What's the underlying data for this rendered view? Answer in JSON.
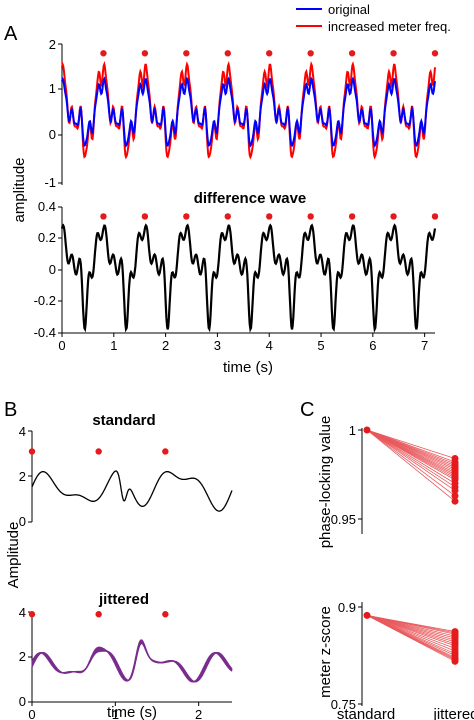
{
  "colors": {
    "original": "#0000ff",
    "increased": "#ff0000",
    "diff": "#000000",
    "marker": "#e41a1c",
    "jittered": "#7b2d8e",
    "conn": "#e8595c"
  },
  "panel_labels": {
    "a": "A",
    "b": "B",
    "c": "C"
  },
  "chart_data": [
    {
      "id": "A-top",
      "type": "line",
      "ylim": [
        -1,
        2
      ],
      "xlim": [
        0,
        7.2
      ],
      "yticks": [
        "-1",
        "0",
        "1",
        "2"
      ],
      "legend": {
        "placement": "top-right",
        "entries": [
          "original",
          "increased meter freq."
        ]
      },
      "markers_x": [
        0.8,
        1.6,
        2.4,
        3.2,
        4.0,
        4.8,
        5.6,
        6.4,
        7.2
      ],
      "markers_y": 1.8,
      "series": [
        {
          "name": "original",
          "color": "#0000ff"
        },
        {
          "name": "increased meter freq.",
          "color": "#ff0000"
        }
      ]
    },
    {
      "id": "A-bottom",
      "type": "line",
      "title": "difference wave",
      "ylim": [
        -0.4,
        0.4
      ],
      "xlim": [
        0,
        7.2
      ],
      "yticks": [
        "-0.4",
        "-0.2",
        "0",
        "0.2",
        "0.4"
      ],
      "xticks": [
        "0",
        "1",
        "2",
        "3",
        "4",
        "5",
        "6",
        "7"
      ],
      "xlabel": "time (s)",
      "markers_x": [
        0.8,
        1.6,
        2.4,
        3.2,
        4.0,
        4.8,
        5.6,
        6.4,
        7.2
      ],
      "markers_y": 0.34
    },
    {
      "id": "B-top",
      "type": "line",
      "title": "standard",
      "ylim": [
        0,
        4
      ],
      "xlim": [
        0,
        2.4
      ],
      "yticks": [
        "0",
        "2",
        "4"
      ],
      "markers_x": [
        0,
        0.8,
        1.6
      ],
      "markers_y": 3.1
    },
    {
      "id": "B-bottom",
      "type": "line",
      "title": "jittered",
      "ylim": [
        0,
        4
      ],
      "xlim": [
        0,
        2.4
      ],
      "yticks": [
        "0",
        "2",
        "4"
      ],
      "xticks": [
        "0",
        "1",
        "2"
      ],
      "xlabel": "time (s)",
      "markers_x": [
        0,
        0.8,
        1.6
      ],
      "markers_y": 3.9
    },
    {
      "id": "C-top",
      "type": "scatter",
      "categories": [
        "standard",
        "jittered"
      ],
      "ylabel": "phase-locking value",
      "ylim": [
        0.95,
        1.0
      ],
      "yticks": [
        "0.95",
        "1"
      ],
      "standard": 1.0,
      "jittered": [
        0.984,
        0.982,
        0.981,
        0.98,
        0.979,
        0.978,
        0.977,
        0.976,
        0.975,
        0.974,
        0.973,
        0.972,
        0.97,
        0.968,
        0.966,
        0.963,
        0.96
      ]
    },
    {
      "id": "C-bottom",
      "type": "scatter",
      "categories": [
        "standard",
        "jittered"
      ],
      "ylabel": "meter z-score",
      "ylim": [
        0.75,
        0.9
      ],
      "yticks": [
        "0.75",
        "0.9"
      ],
      "standard": 0.887,
      "jittered": [
        0.862,
        0.86,
        0.858,
        0.855,
        0.852,
        0.849,
        0.846,
        0.843,
        0.84,
        0.836,
        0.832,
        0.828,
        0.825,
        0.822,
        0.82,
        0.818,
        0.816
      ]
    }
  ],
  "shared_ylabel_A": "amplitude",
  "shared_ylabel_B": "Amplitude"
}
